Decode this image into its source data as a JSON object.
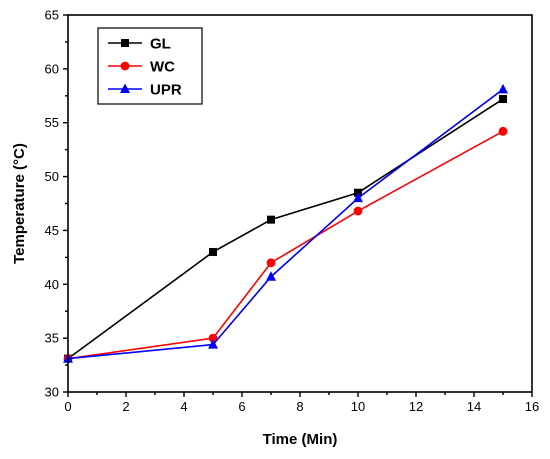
{
  "chart_data": {
    "type": "line",
    "xlabel": "Time (Min)",
    "ylabel": "Temperature (°C)",
    "xlim": [
      0,
      16
    ],
    "ylim": [
      30,
      65
    ],
    "xticks": [
      0,
      2,
      4,
      6,
      8,
      10,
      12,
      14,
      16
    ],
    "yticks": [
      30,
      35,
      40,
      45,
      50,
      55,
      60,
      65
    ],
    "grid": false,
    "legend_position": "top-left",
    "series": [
      {
        "name": "GL",
        "color": "#000000",
        "marker": "square",
        "x": [
          0,
          5,
          7,
          10,
          15
        ],
        "y": [
          33.1,
          43.0,
          46.0,
          48.5,
          57.2
        ]
      },
      {
        "name": "WC",
        "color": "#ff0000",
        "marker": "circle",
        "x": [
          0,
          5,
          7,
          10,
          15
        ],
        "y": [
          33.1,
          35.0,
          42.0,
          46.8,
          54.2
        ]
      },
      {
        "name": "UPR",
        "color": "#0000ff",
        "marker": "triangle",
        "x": [
          0,
          5,
          7,
          10,
          15
        ],
        "y": [
          33.1,
          34.4,
          40.7,
          48.0,
          58.1
        ]
      }
    ]
  }
}
